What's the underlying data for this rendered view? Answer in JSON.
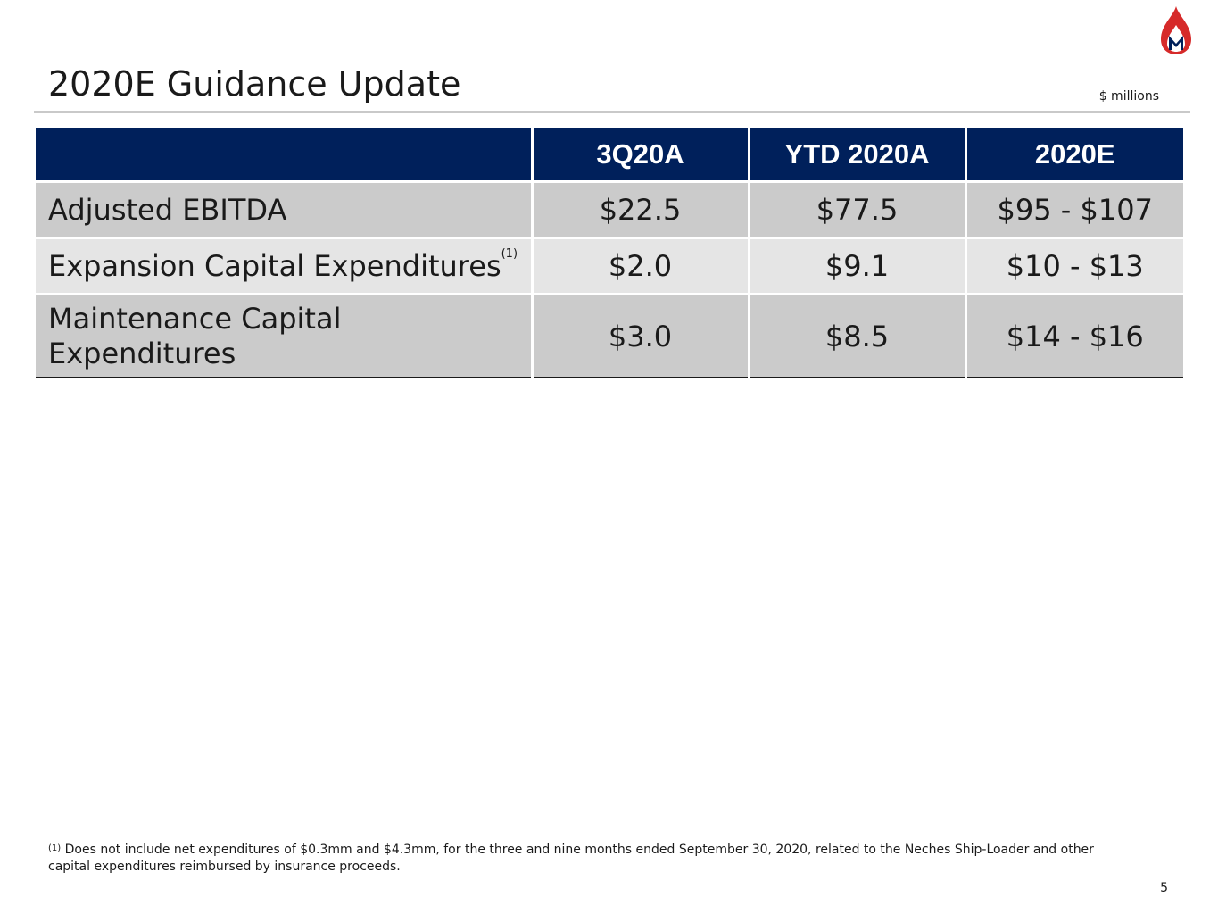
{
  "header": {
    "title": "2020E Guidance Update",
    "units": "$ millions",
    "logo_icon": "flame-m-logo-icon",
    "logo_colors": {
      "flame": "#d62a2a",
      "letter": "#00205b"
    }
  },
  "table": {
    "columns": [
      "",
      "3Q20A",
      "YTD 2020A",
      "2020E"
    ],
    "rows": [
      {
        "label": "Adjusted EBITDA",
        "note": "",
        "q3": "$22.5",
        "ytd": "$77.5",
        "e2020": "$95 - $107"
      },
      {
        "label": "Expansion Capital Expenditures",
        "note": "(1)",
        "q3": "$2.0",
        "ytd": "$9.1",
        "e2020": "$10 - $13"
      },
      {
        "label": "Maintenance Capital Expenditures",
        "note": "",
        "q3": "$3.0",
        "ytd": "$8.5",
        "e2020": "$14 - $16"
      }
    ],
    "header_color": "#00205b"
  },
  "footnote": {
    "marker": "(1)",
    "text": "Does not include net expenditures of $0.3mm and $4.3mm, for the three and nine months ended September 30, 2020, related to the Neches Ship-Loader and other capital expenditures reimbursed by insurance proceeds."
  },
  "page_number": "5"
}
